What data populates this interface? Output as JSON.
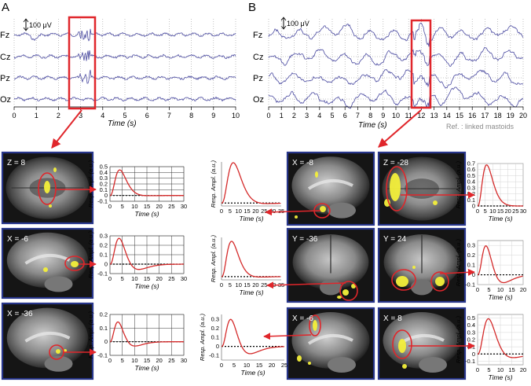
{
  "panels": {
    "a": {
      "letter": "A",
      "scale_label": "100 μV",
      "channels": [
        "Fz",
        "Cz",
        "Pz",
        "Oz"
      ],
      "x_ticks": [
        "0",
        "1",
        "2",
        "3",
        "4",
        "5",
        "6",
        "7",
        "8",
        "9",
        "10"
      ],
      "x_label": "Time (s)",
      "highlight_second": 3
    },
    "b": {
      "letter": "B",
      "scale_label": "100 μV",
      "channels": [
        "Fz",
        "Cz",
        "Pz",
        "Oz"
      ],
      "x_ticks": [
        "0",
        "1",
        "2",
        "3",
        "4",
        "5",
        "6",
        "7",
        "8",
        "9",
        "10",
        "11",
        "12",
        "13",
        "14",
        "15",
        "16",
        "17",
        "18",
        "19",
        "20"
      ],
      "x_label": "Time (s)",
      "ref_note": "Ref. : linked mastoids",
      "highlight_second": 12
    }
  },
  "brain_slices": [
    {
      "id": "a1",
      "label": "Z = 8",
      "view": "axial"
    },
    {
      "id": "a2",
      "label": "X = -6",
      "view": "sagittal"
    },
    {
      "id": "a3",
      "label": "X = -36",
      "view": "sagittal"
    },
    {
      "id": "b1",
      "label": "X = -8",
      "view": "sagittal"
    },
    {
      "id": "b2",
      "label": "Z = -28",
      "view": "axial"
    },
    {
      "id": "b3",
      "label": "Y = -36",
      "view": "coronal"
    },
    {
      "id": "b4",
      "label": "Y = 24",
      "view": "coronal"
    },
    {
      "id": "b5",
      "label": "X = -6",
      "view": "sagittal"
    },
    {
      "id": "b6",
      "label": "X = 8",
      "view": "sagittal"
    }
  ],
  "plot_axis_labels": {
    "y": "Resp. Ampl. (a.u.)",
    "x": "Time (s)"
  },
  "response_plots": [
    {
      "id": "pa1",
      "yticks": [
        "0.5",
        "0.4",
        "0.3",
        "0.2",
        "0.1",
        "0",
        "-0.1"
      ],
      "xticks": [
        "0",
        "5",
        "10",
        "15",
        "20",
        "25",
        "30"
      ]
    },
    {
      "id": "pa2",
      "yticks": [
        "0.3",
        "0.2",
        "0.1",
        "0",
        "-0.1"
      ],
      "xticks": [
        "0",
        "5",
        "10",
        "15",
        "20",
        "25",
        "30"
      ]
    },
    {
      "id": "pa3",
      "yticks": [
        "0.2",
        "0.1",
        "0",
        "-0.1"
      ],
      "xticks": [
        "0",
        "5",
        "10",
        "15",
        "20",
        "25",
        "30"
      ]
    },
    {
      "id": "pb1",
      "yticks": [],
      "xticks": [
        "0",
        "5",
        "10",
        "15",
        "20",
        "25",
        "30",
        "35"
      ]
    },
    {
      "id": "pb2",
      "yticks": [
        "0.7",
        "0.6",
        "0.5",
        "0.4",
        "0.3",
        "0.2",
        "0.1",
        "0"
      ],
      "xticks": [
        "0",
        "5",
        "10",
        "15",
        "20",
        "25",
        "30"
      ]
    },
    {
      "id": "pb3",
      "yticks": [],
      "xticks": [
        "0",
        "5",
        "10",
        "15",
        "20",
        "25",
        "30",
        "35"
      ]
    },
    {
      "id": "pb4",
      "yticks": [
        "0.3",
        "0.2",
        "0.1",
        "0",
        "-0.1"
      ],
      "xticks": [
        "0",
        "5",
        "10",
        "15",
        "20"
      ]
    },
    {
      "id": "pb5",
      "yticks": [
        "0.3",
        "0.2",
        "0.1",
        "0",
        "-0.1"
      ],
      "xticks": [
        "0",
        "5",
        "10",
        "15",
        "20",
        "25"
      ]
    },
    {
      "id": "pb6",
      "yticks": [
        "0.5",
        "0.4",
        "0.3",
        "0.2",
        "0.1",
        "0",
        "-0.1"
      ],
      "xticks": [
        "0",
        "5",
        "10",
        "15",
        "20"
      ]
    }
  ],
  "colors": {
    "eeg_trace": "#4a4aa0",
    "highlight": "#e0262b",
    "frame": "#27358a",
    "hrf": "#d42a2a",
    "grid": "#b9b9b9",
    "activation": "#f3ef3a"
  }
}
